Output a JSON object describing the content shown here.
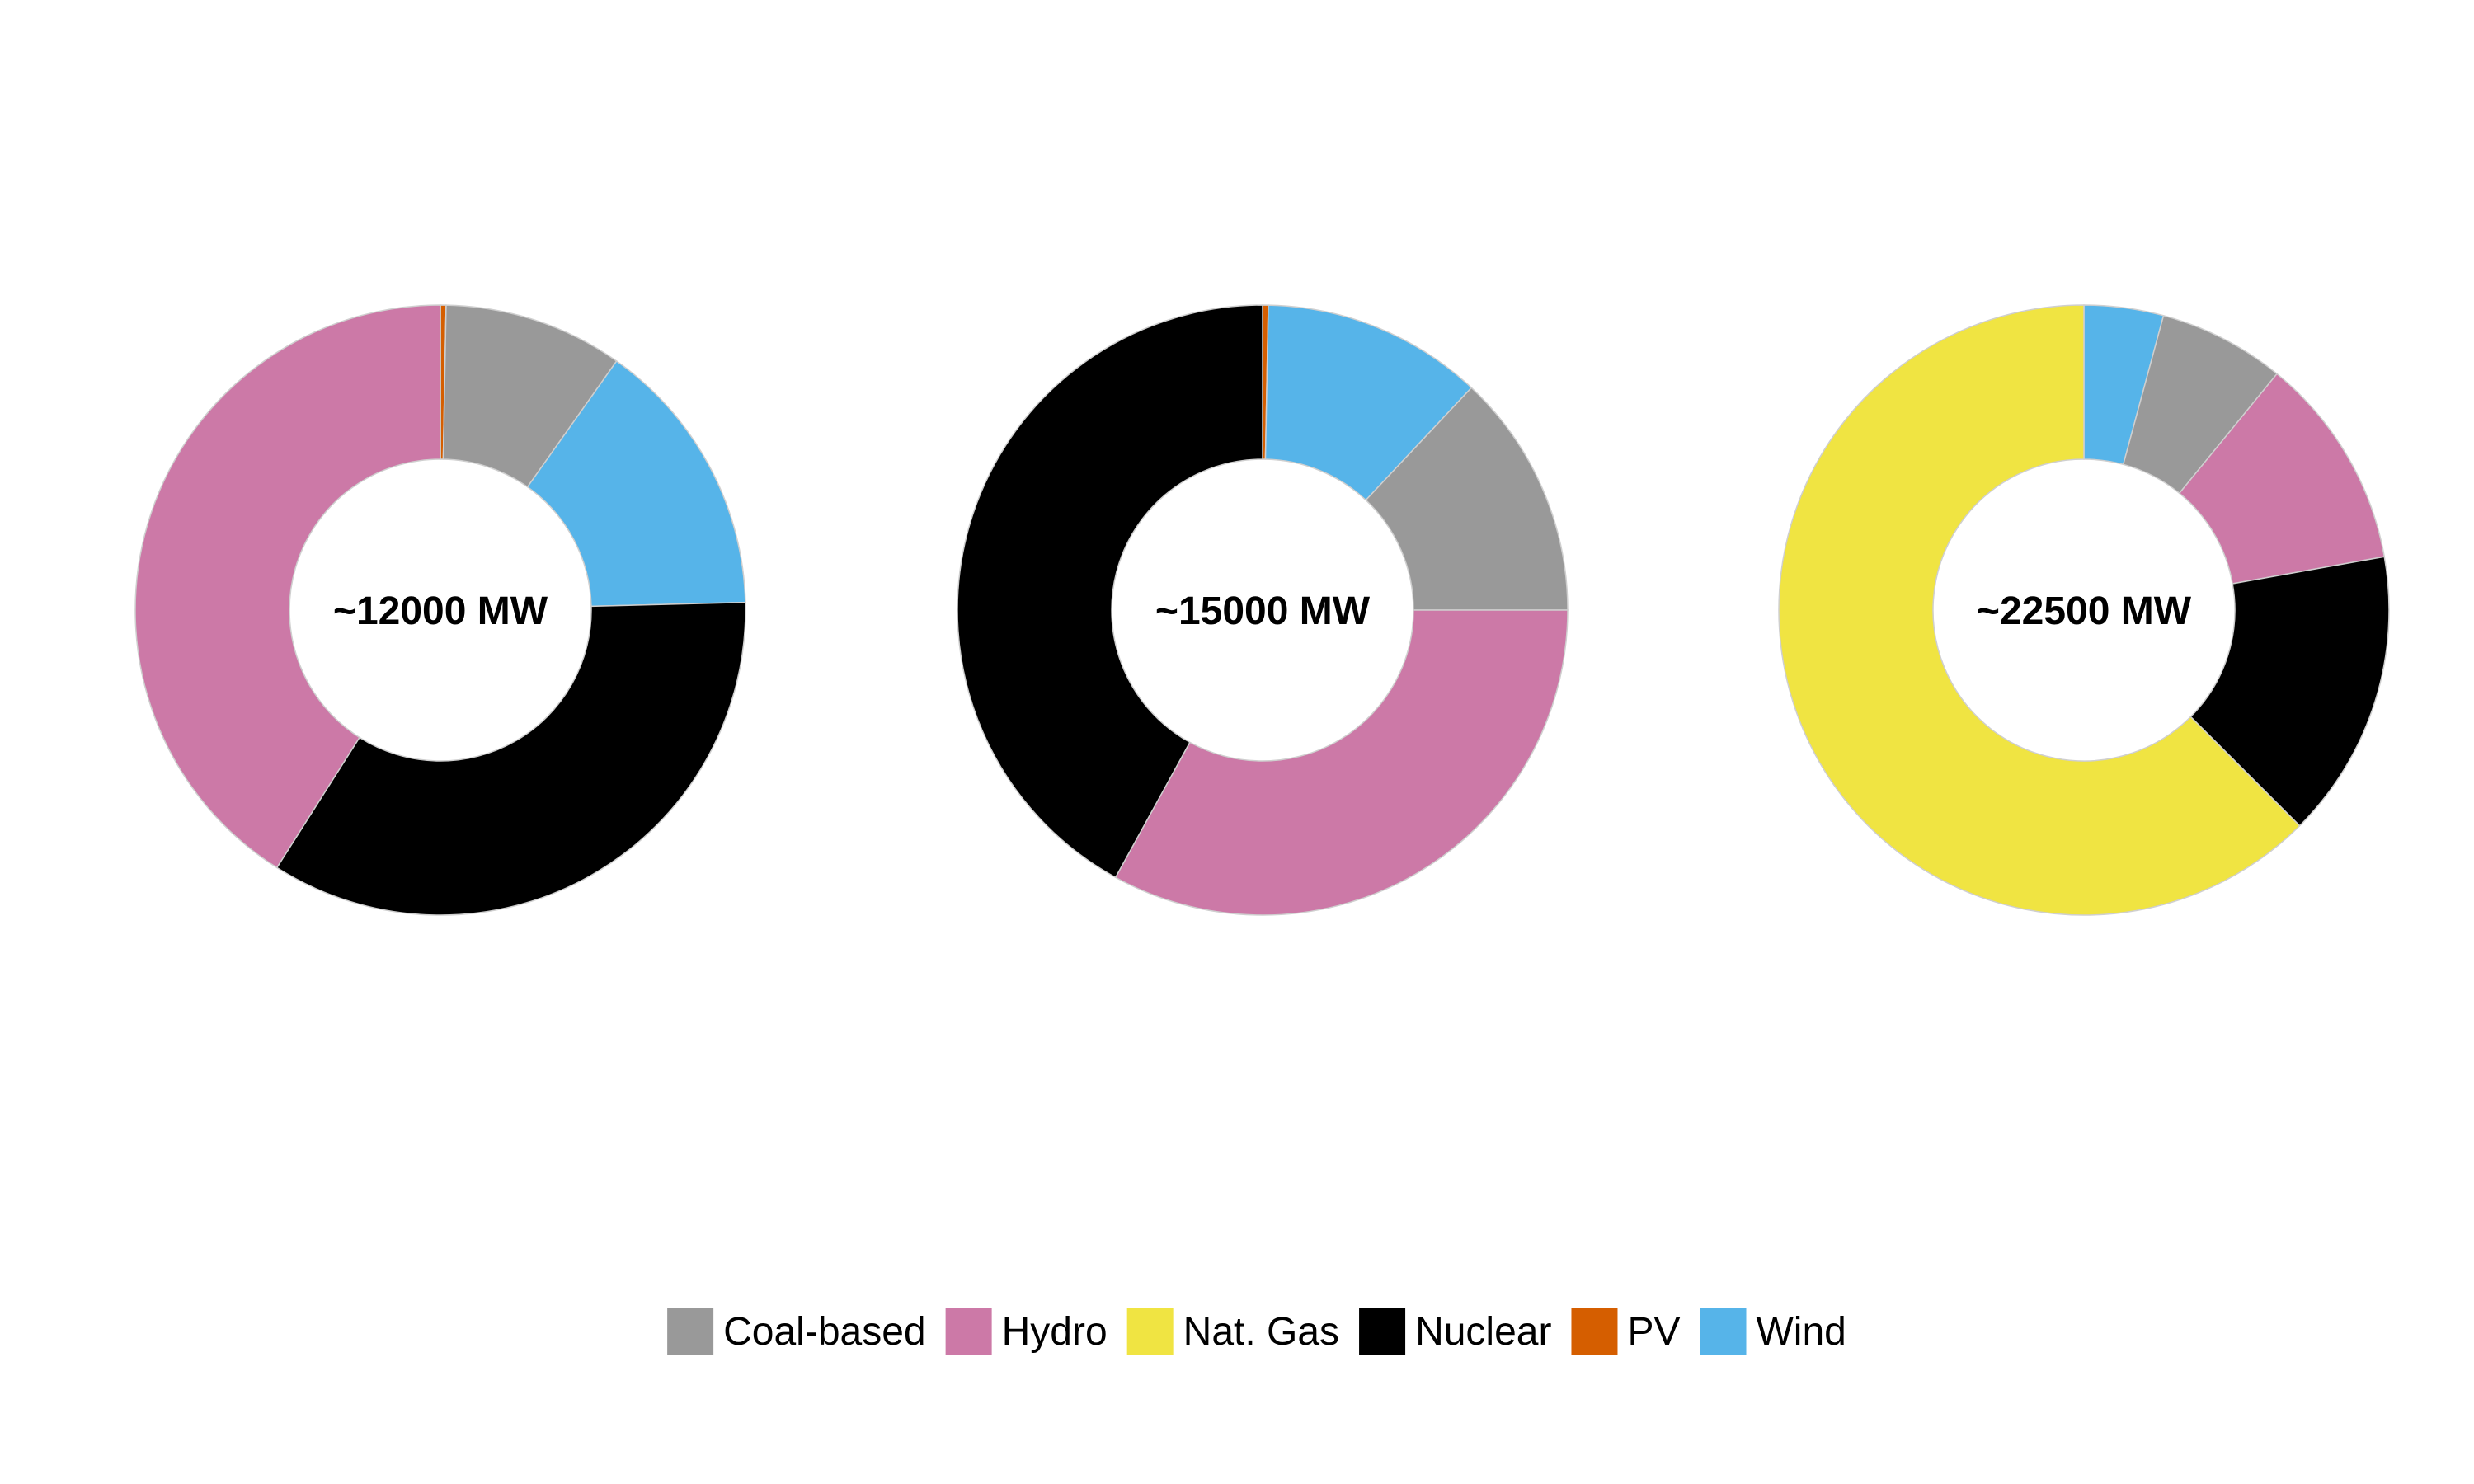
{
  "chart_data": [
    {
      "type": "pie",
      "style": "donut",
      "center_label": "~12000 MW",
      "slices": [
        {
          "category": "PV",
          "value": 0.3
        },
        {
          "category": "Coal-based",
          "value": 9.5
        },
        {
          "category": "Wind",
          "value": 14.8
        },
        {
          "category": "Nuclear",
          "value": 34.4
        },
        {
          "category": "Hydro",
          "value": 41.0
        }
      ]
    },
    {
      "type": "pie",
      "style": "donut",
      "center_label": "~15000 MW",
      "slices": [
        {
          "category": "PV",
          "value": 0.3
        },
        {
          "category": "Wind",
          "value": 11.7
        },
        {
          "category": "Coal-based",
          "value": 13.0
        },
        {
          "category": "Hydro",
          "value": 33.0
        },
        {
          "category": "Nuclear",
          "value": 42.0
        }
      ]
    },
    {
      "type": "pie",
      "style": "donut",
      "center_label": "~22500 MW",
      "slices": [
        {
          "category": "Wind",
          "value": 4.2
        },
        {
          "category": "Coal-based",
          "value": 6.7
        },
        {
          "category": "Hydro",
          "value": 11.3
        },
        {
          "category": "Nuclear",
          "value": 15.3
        },
        {
          "category": "Nat. Gas",
          "value": 62.5
        }
      ]
    }
  ],
  "legend": {
    "placement": "bottom",
    "items": [
      {
        "label": "Coal-based",
        "color": "#999999"
      },
      {
        "label": "Hydro",
        "color": "#CC79A7"
      },
      {
        "label": "Nat. Gas",
        "color": "#F0E442"
      },
      {
        "label": "Nuclear",
        "color": "#000000"
      },
      {
        "label": "PV",
        "color": "#D55E00"
      },
      {
        "label": "Wind",
        "color": "#56B4E9"
      }
    ]
  }
}
